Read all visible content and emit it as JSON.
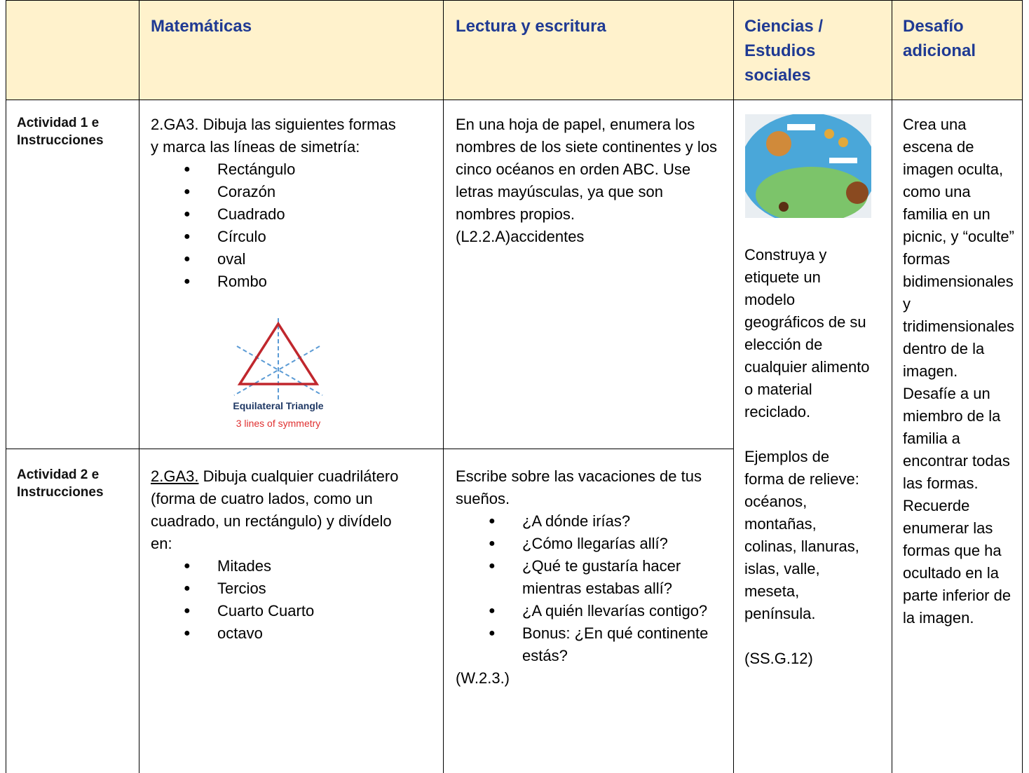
{
  "header": {
    "cells": [
      "Matemáticas",
      "Lectura y escritura",
      "Ciencias / Estudios sociales",
      "Desafío adicional"
    ]
  },
  "rows": [
    {
      "label": "Actividad 1 e Instrucciones",
      "math": {
        "intro": "2.GA3. Dibuja las siguientes formas y marca las líneas de simetría:",
        "items": [
          "Rectángulo",
          "Corazón",
          "Cuadrado",
          "Círculo",
          "oval",
          "Rombo"
        ],
        "figure": {
          "title": "Equilateral Triangle",
          "subtitle": "3 lines of symmetry"
        }
      },
      "reading": {
        "intro": "En una hoja de papel, enumera los nombres de los siete continentes y los cinco océanos en orden ABC. Use letras mayúsculas, ya que son nombres propios.",
        "code": "(L2.2.A)accidentes"
      }
    },
    {
      "label": "Actividad 2 e Instrucciones",
      "math": {
        "code": "2.GA3.",
        "intro": "Dibuja cualquier cuadrilátero (forma de cuatro lados, como un cuadrado, un rectángulo) y divídelo en:",
        "items": [
          "Mitades",
          "Tercios",
          "Cuarto Cuarto",
          "octavo"
        ]
      },
      "reading": {
        "intro": "Escribe sobre las vacaciones de tus sueños.",
        "items": [
          "¿A dónde irías?",
          "¿Cómo llegarías allí?",
          "¿Qué te gustaría hacer mientras estabas allí?",
          "¿A quién llevarías contigo?",
          "Bonus: ¿En qué continente estás?"
        ],
        "code": "(W.2.3.)"
      }
    }
  ],
  "science": {
    "text": "Construya y etiquete un modelo geográficos de su elección de cualquier alimento o material reciclado.",
    "examples": "Ejemplos de forma de relieve: océanos, montañas, colinas, llanuras, islas, valle, meseta, península.",
    "code": "(SS.G.12)"
  },
  "challenge": {
    "text": "Crea una escena de imagen oculta, como una familia en un picnic, y “oculte” formas bidimensionales y tridimensionales dentro de la imagen. Desafíe a un miembro de la familia a encontrar todas las formas. Recuerde enumerar las formas que ha ocultado en la parte inferior de la imagen."
  }
}
